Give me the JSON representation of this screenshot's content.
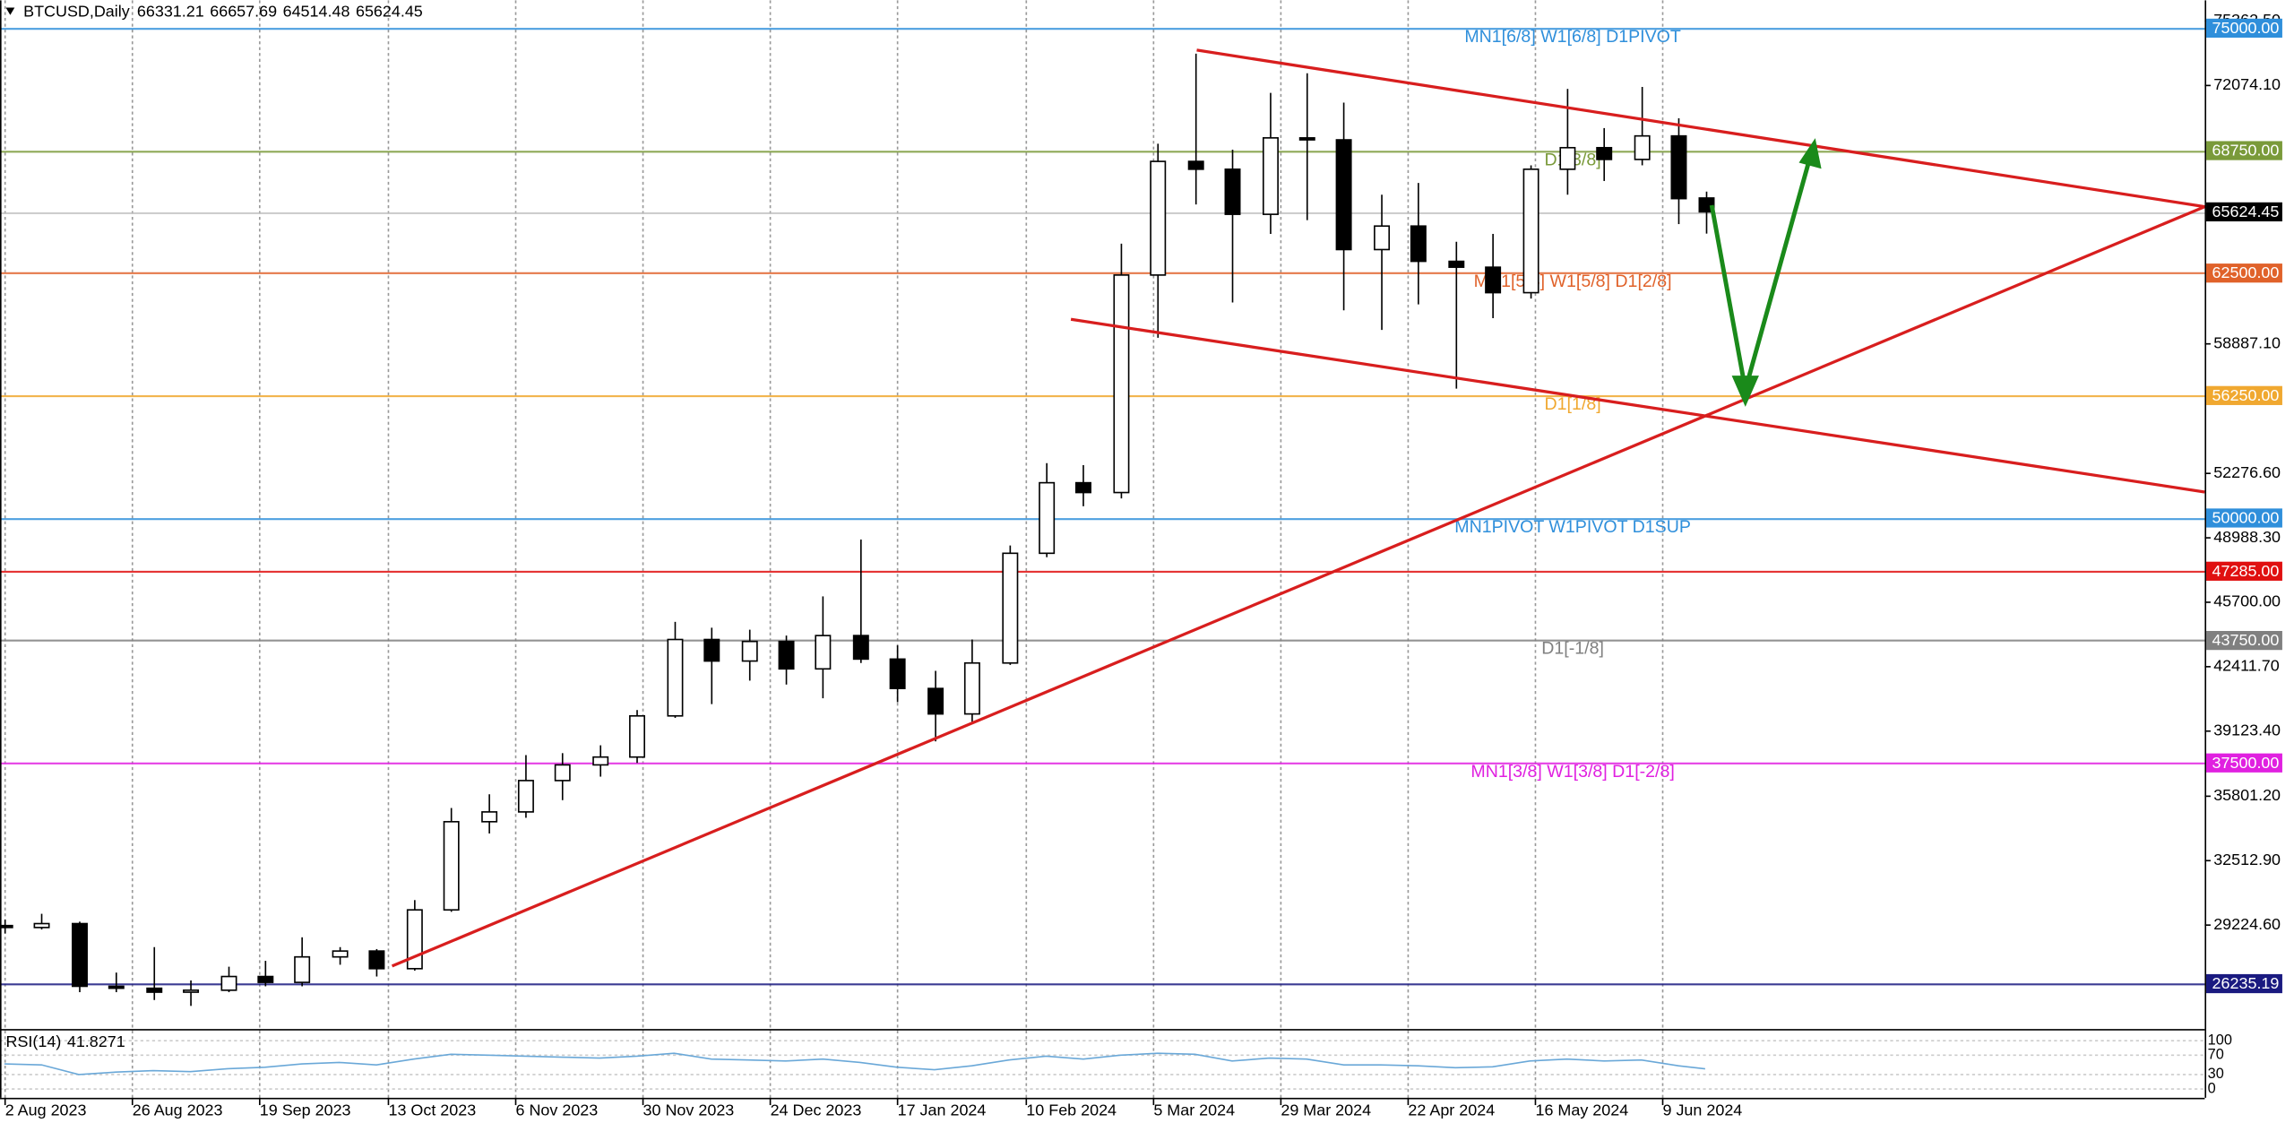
{
  "chart_data": {
    "type": "candlestick",
    "title": "BTCUSD,Daily",
    "x": [
      "2023-08-02",
      "2023-08-09",
      "2023-08-16",
      "2023-08-23",
      "2023-08-30",
      "2023-09-06",
      "2023-09-13",
      "2023-09-20",
      "2023-09-27",
      "2023-10-04",
      "2023-10-11",
      "2023-10-18",
      "2023-10-25",
      "2023-11-01",
      "2023-11-08",
      "2023-11-15",
      "2023-11-22",
      "2023-11-29",
      "2023-12-06",
      "2023-12-13",
      "2023-12-20",
      "2023-12-27",
      "2024-01-03",
      "2024-01-10",
      "2024-01-17",
      "2024-01-24",
      "2024-01-31",
      "2024-02-07",
      "2024-02-14",
      "2024-02-21",
      "2024-02-28",
      "2024-03-06",
      "2024-03-13",
      "2024-03-20",
      "2024-03-27",
      "2024-04-03",
      "2024-04-10",
      "2024-04-17",
      "2024-04-24",
      "2024-05-01",
      "2024-05-08",
      "2024-05-15",
      "2024-05-22",
      "2024-05-29",
      "2024-06-05",
      "2024-06-12",
      "2024-06-17"
    ],
    "open": [
      29200,
      29100,
      29300,
      26100,
      26000,
      25800,
      25900,
      26600,
      26300,
      27600,
      27900,
      27000,
      30000,
      34500,
      35000,
      36600,
      37400,
      37800,
      39900,
      43800,
      42700,
      43700,
      42300,
      44000,
      42800,
      41300,
      40000,
      42600,
      48200,
      51800,
      51300,
      62400,
      68200,
      67800,
      65500,
      69400,
      69300,
      63700,
      64900,
      63100,
      62800,
      61500,
      67800,
      68900,
      68300,
      69500,
      66331.21
    ],
    "high": [
      29500,
      29800,
      29400,
      26800,
      28100,
      26400,
      27100,
      27400,
      28600,
      28100,
      28000,
      30500,
      35200,
      35900,
      37900,
      38000,
      38400,
      40200,
      44700,
      44400,
      44300,
      44000,
      46000,
      48900,
      43500,
      42200,
      43800,
      48600,
      52800,
      52700,
      64000,
      69100,
      73700,
      68800,
      71700,
      72700,
      71200,
      66500,
      67100,
      64100,
      64500,
      68000,
      71900,
      69900,
      72000,
      70400,
      66657.69
    ],
    "low": [
      28800,
      29000,
      25800,
      25800,
      25400,
      25100,
      25800,
      26100,
      26100,
      27200,
      26600,
      26900,
      29900,
      33900,
      34700,
      35600,
      36800,
      37500,
      39800,
      40500,
      41700,
      41500,
      40800,
      42600,
      40600,
      38600,
      39600,
      42500,
      48000,
      50600,
      51000,
      59200,
      66000,
      61000,
      64500,
      65200,
      60600,
      59600,
      60900,
      56600,
      60200,
      61200,
      66500,
      67200,
      68000,
      65000,
      64514.48
    ],
    "close": [
      29100,
      29300,
      26100,
      26000,
      25800,
      25900,
      26600,
      26300,
      27600,
      27900,
      27000,
      30000,
      34500,
      35000,
      36600,
      37400,
      37800,
      39900,
      43800,
      42700,
      43700,
      42300,
      44000,
      42800,
      41300,
      40000,
      42600,
      48200,
      51800,
      51300,
      62400,
      68200,
      67800,
      65500,
      69400,
      69300,
      63700,
      64900,
      63100,
      62800,
      61500,
      67800,
      68900,
      68300,
      69500,
      66300,
      65624.45
    ],
    "xlim": [
      "2023-08-02",
      "2024-09-19"
    ],
    "ylim": [
      23920,
      76420
    ],
    "yticks": [
      {
        "value": 75362.5,
        "label": "75362.50"
      },
      {
        "value": 72074.1,
        "label": "72074.10"
      },
      {
        "value": 58887.1,
        "label": "58887.10"
      },
      {
        "value": 52276.6,
        "label": "52276.60"
      },
      {
        "value": 48988.3,
        "label": "48988.30"
      },
      {
        "value": 45700,
        "label": "45700.00"
      },
      {
        "value": 42411.7,
        "label": "42411.70"
      },
      {
        "value": 39123.4,
        "label": "39123.40"
      },
      {
        "value": 35801.2,
        "label": "35801.20"
      },
      {
        "value": 32512.9,
        "label": "32512.90"
      },
      {
        "value": 29224.6,
        "label": "29224.60"
      }
    ],
    "xticks": [
      {
        "value": "2023-08-02",
        "label": "2 Aug 2023"
      },
      {
        "value": "2023-08-26",
        "label": "26 Aug 2023"
      },
      {
        "value": "2023-09-19",
        "label": "19 Sep 2023"
      },
      {
        "value": "2023-10-13",
        "label": "13 Oct 2023"
      },
      {
        "value": "2023-11-06",
        "label": "6 Nov 2023"
      },
      {
        "value": "2023-11-30",
        "label": "30 Nov 2023"
      },
      {
        "value": "2023-12-24",
        "label": "24 Dec 2023"
      },
      {
        "value": "2024-01-17",
        "label": "17 Jan 2024"
      },
      {
        "value": "2024-02-10",
        "label": "10 Feb 2024"
      },
      {
        "value": "2024-03-05",
        "label": "5 Mar 2024"
      },
      {
        "value": "2024-03-29",
        "label": "29 Mar 2024"
      },
      {
        "value": "2024-04-22",
        "label": "22 Apr 2024"
      },
      {
        "value": "2024-05-16",
        "label": "16 May 2024"
      },
      {
        "value": "2024-06-09",
        "label": "9 Jun 2024"
      }
    ],
    "levels": [
      {
        "value": 75000,
        "label": "75000.00",
        "color": "#2f8fdb",
        "note": "MN1[6/8] W1[6/8] D1PIVOT"
      },
      {
        "value": 68750,
        "label": "68750.00",
        "color": "#7a9a3a",
        "note": "D1[3/8]"
      },
      {
        "value": 62500,
        "label": "62500.00",
        "color": "#e0622a",
        "note": "MN1[5/8] W1[5/8] D1[2/8]"
      },
      {
        "value": 56250,
        "label": "56250.00",
        "color": "#f0a830",
        "note": "D1[1/8]"
      },
      {
        "value": 50000,
        "label": "50000.00",
        "color": "#2f8fdb",
        "note": "MN1PIVOT W1PIVOT D1SUP"
      },
      {
        "value": 47285,
        "label": "47285.00",
        "color": "#e01010"
      },
      {
        "value": 43750,
        "label": "43750.00",
        "color": "#808080",
        "note": "D1[-1/8]"
      },
      {
        "value": 37500,
        "label": "37500.00",
        "color": "#e020e0",
        "note": "MN1[3/8] W1[3/8] D1[-2/8]"
      },
      {
        "value": 26235.19,
        "color": "#1a1a80"
      }
    ],
    "last_price_color": "#000000",
    "indicator": {
      "name": "RSI(14)",
      "value": 41.8271,
      "color": "#6aa8d8",
      "values": [
        52,
        50,
        30,
        35,
        38,
        36,
        42,
        45,
        52,
        55,
        50,
        62,
        72,
        70,
        68,
        66,
        64,
        68,
        74,
        62,
        60,
        58,
        62,
        55,
        45,
        40,
        48,
        60,
        68,
        62,
        70,
        74,
        72,
        58,
        64,
        62,
        50,
        50,
        48,
        44,
        46,
        58,
        62,
        58,
        60,
        48,
        41.8271
      ],
      "ylim": [
        0,
        100
      ],
      "yticks": [
        100,
        70,
        30,
        0
      ]
    }
  }
}
